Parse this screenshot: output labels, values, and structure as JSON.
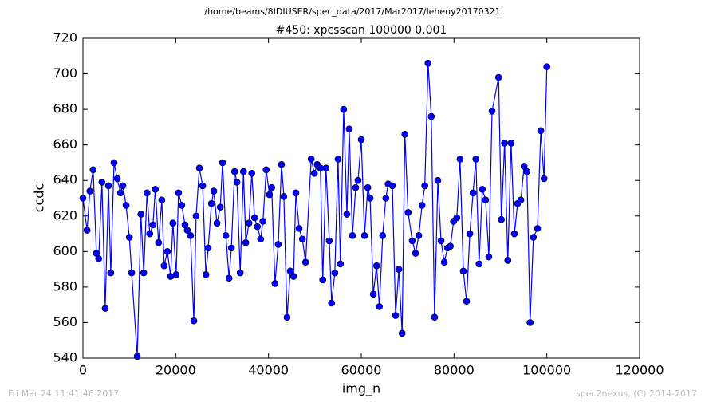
{
  "chart_data": {
    "type": "line",
    "suptitle": "/home/beams/8IDIUSER/spec_data/2017/Mar2017/leheny20170321",
    "title": "#450: xpcsscan 100000 0.001",
    "xlabel": "img_n",
    "ylabel": "ccdc",
    "footer_left": "Fri Mar 24 11:41:46 2017",
    "footer_right": "spec2nexus, (C) 2014-2017",
    "xlim": [
      0,
      120000
    ],
    "xticks": [
      0,
      20000,
      40000,
      60000,
      80000,
      100000,
      120000
    ],
    "ylim": [
      540,
      720
    ],
    "yticks": [
      540,
      560,
      580,
      600,
      620,
      640,
      660,
      680,
      700,
      720
    ],
    "series": [
      {
        "color": "#0000ff",
        "x": [
          0,
          900,
          1500,
          2200,
          2900,
          3400,
          4100,
          4800,
          5500,
          6000,
          6700,
          7400,
          8100,
          8600,
          9300,
          10000,
          10500,
          11700,
          12500,
          13100,
          13800,
          14400,
          15100,
          15600,
          16300,
          17000,
          17500,
          18200,
          18900,
          19400,
          20100,
          20600,
          21300,
          22000,
          22500,
          23200,
          23900,
          24400,
          25100,
          25800,
          26500,
          27000,
          27700,
          28200,
          28900,
          29600,
          30100,
          30800,
          31500,
          32000,
          32700,
          33200,
          33900,
          34600,
          35100,
          35800,
          36400,
          37000,
          37600,
          38300,
          38800,
          39500,
          40200,
          40700,
          41400,
          42100,
          42800,
          43300,
          44000,
          44700,
          45400,
          45900,
          46600,
          47300,
          48000,
          49200,
          49900,
          50500,
          51200,
          51700,
          52400,
          53100,
          53600,
          54300,
          55000,
          55500,
          56200,
          56900,
          57400,
          58100,
          58800,
          59300,
          60000,
          60700,
          61400,
          61900,
          62600,
          63300,
          63900,
          64600,
          65300,
          65800,
          66700,
          67400,
          68100,
          68800,
          69400,
          70100,
          71000,
          71700,
          72400,
          73100,
          73700,
          74400,
          75100,
          75800,
          76500,
          77200,
          77900,
          78600,
          79200,
          79900,
          80600,
          81300,
          82000,
          82700,
          83400,
          84100,
          84700,
          85400,
          86100,
          86800,
          87500,
          88200,
          89600,
          90200,
          90900,
          91600,
          92300,
          93000,
          93700,
          94400,
          95100,
          95700,
          96400,
          97100,
          98000,
          98700,
          99400,
          100000
        ],
        "values": [
          630,
          612,
          634,
          646,
          599,
          596,
          639,
          568,
          637,
          588,
          650,
          641,
          633,
          637,
          626,
          608,
          588,
          541,
          621,
          588,
          633,
          610,
          615,
          635,
          605,
          629,
          592,
          600,
          586,
          616,
          587,
          633,
          626,
          615,
          612,
          609,
          561,
          620,
          647,
          637,
          587,
          602,
          627,
          634,
          616,
          625,
          650,
          609,
          585,
          602,
          645,
          639,
          588,
          645,
          605,
          616,
          644,
          619,
          614,
          607,
          617,
          646,
          632,
          636,
          582,
          604,
          649,
          631,
          563,
          589,
          586,
          633,
          613,
          607,
          594,
          652,
          644,
          649,
          647,
          584,
          647,
          606,
          571,
          588,
          652,
          593,
          680,
          621,
          669,
          609,
          636,
          640,
          663,
          609,
          636,
          630,
          576,
          592,
          569,
          609,
          630,
          638,
          637,
          564,
          590,
          554,
          666,
          622,
          606,
          599,
          609,
          626,
          637,
          706,
          676,
          563,
          640,
          606,
          594,
          602,
          603,
          617,
          619,
          652,
          589,
          572,
          610,
          633,
          652,
          593,
          635,
          629,
          597,
          679,
          698,
          618,
          661,
          595,
          661,
          610,
          627,
          629,
          648,
          645,
          560,
          608,
          613,
          668,
          641,
          704
        ]
      }
    ]
  }
}
